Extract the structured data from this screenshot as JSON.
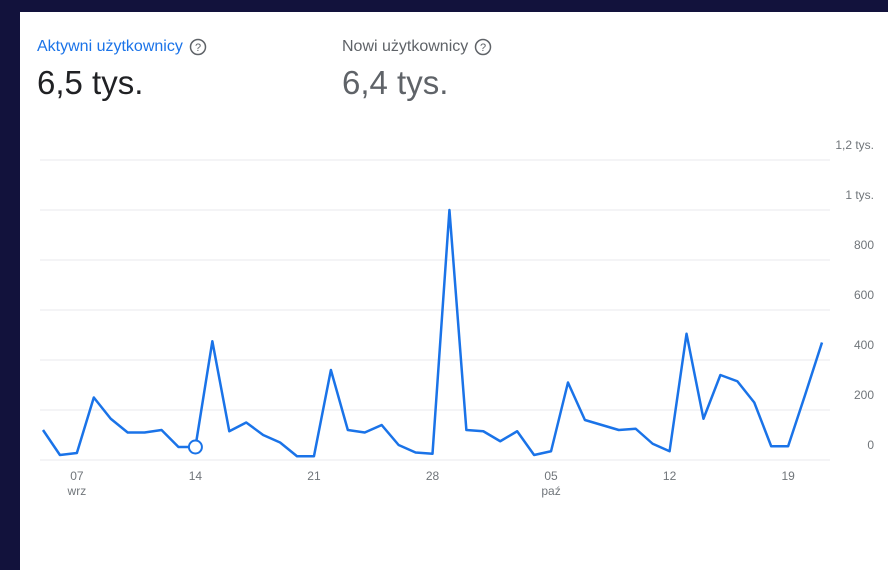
{
  "cards": [
    {
      "label": "Aktywni użytkownicy",
      "value": "6,5 tys."
    },
    {
      "label": "Nowi użytkownicy",
      "value": "6,4 tys."
    }
  ],
  "chart_data": {
    "type": "line",
    "categories": [
      null,
      null,
      "07",
      null,
      null,
      null,
      null,
      null,
      null,
      "14",
      null,
      null,
      null,
      null,
      null,
      null,
      "21",
      null,
      null,
      null,
      null,
      null,
      null,
      "28",
      null,
      null,
      null,
      null,
      null,
      null,
      "05",
      null,
      null,
      null,
      null,
      null,
      null,
      "12",
      null,
      null,
      null,
      null,
      null,
      null,
      "19",
      null,
      null
    ],
    "month_labels": [
      null,
      null,
      "wrz",
      null,
      null,
      null,
      null,
      null,
      null,
      null,
      null,
      null,
      null,
      null,
      null,
      null,
      null,
      null,
      null,
      null,
      null,
      null,
      null,
      null,
      null,
      null,
      null,
      null,
      null,
      null,
      "paź",
      null,
      null,
      null,
      null,
      null,
      null,
      null,
      null,
      null,
      null,
      null,
      null,
      null,
      null,
      null,
      null
    ],
    "series": [
      {
        "name": "Aktywni użytkownicy",
        "color": "#1a73e8",
        "values": [
          120,
          20,
          28,
          250,
          165,
          110,
          110,
          120,
          52,
          52,
          475,
          115,
          150,
          100,
          70,
          15,
          15,
          360,
          120,
          110,
          140,
          60,
          30,
          25,
          1000,
          120,
          115,
          75,
          115,
          20,
          35,
          310,
          160,
          140,
          120,
          125,
          65,
          35,
          505,
          165,
          340,
          315,
          230,
          55,
          55,
          260,
          470
        ]
      }
    ],
    "marker_index": 9,
    "ylim": [
      0,
      1200
    ],
    "yticks": [
      0,
      200,
      400,
      600,
      800,
      {
        "value": 1000,
        "label": "1 tys."
      },
      {
        "value": 1200,
        "label": "1,2 tys."
      }
    ],
    "grid": true
  }
}
